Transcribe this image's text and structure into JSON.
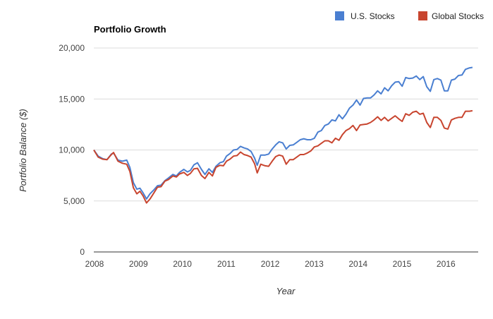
{
  "chart_data": {
    "type": "line",
    "title": "Portfolio Growth",
    "xlabel": "Year",
    "ylabel": "Portfolio Balance ($)",
    "xlim": [
      2008,
      2016.75
    ],
    "ylim": [
      0,
      20000
    ],
    "x_ticks": [
      2008,
      2009,
      2010,
      2011,
      2012,
      2013,
      2014,
      2015,
      2016
    ],
    "y_ticks": [
      0,
      5000,
      10000,
      15000,
      20000
    ],
    "y_tick_labels": [
      "0",
      "5,000",
      "10,000",
      "15,000",
      "20,000"
    ],
    "grid": true,
    "legend_position": "top-right",
    "series": [
      {
        "name": "U.S. Stocks",
        "color": "#4a7fd1",
        "points": [
          [
            2008.0,
            10000
          ],
          [
            2008.1,
            9400
          ],
          [
            2008.2,
            9150
          ],
          [
            2008.3,
            9050
          ],
          [
            2008.4,
            9600
          ],
          [
            2008.45,
            9700
          ],
          [
            2008.55,
            9000
          ],
          [
            2008.65,
            8900
          ],
          [
            2008.75,
            9000
          ],
          [
            2008.82,
            8300
          ],
          [
            2008.9,
            6800
          ],
          [
            2008.98,
            6150
          ],
          [
            2009.05,
            6250
          ],
          [
            2009.12,
            5800
          ],
          [
            2009.2,
            5200
          ],
          [
            2009.28,
            5700
          ],
          [
            2009.37,
            6100
          ],
          [
            2009.45,
            6500
          ],
          [
            2009.53,
            6550
          ],
          [
            2009.62,
            7000
          ],
          [
            2009.7,
            7250
          ],
          [
            2009.8,
            7600
          ],
          [
            2009.88,
            7450
          ],
          [
            2009.95,
            7800
          ],
          [
            2010.05,
            8100
          ],
          [
            2010.13,
            7850
          ],
          [
            2010.2,
            8000
          ],
          [
            2010.28,
            8550
          ],
          [
            2010.36,
            8750
          ],
          [
            2010.45,
            8100
          ],
          [
            2010.53,
            7600
          ],
          [
            2010.62,
            8150
          ],
          [
            2010.7,
            7800
          ],
          [
            2010.78,
            8400
          ],
          [
            2010.87,
            8750
          ],
          [
            2010.95,
            8850
          ],
          [
            2011.02,
            9400
          ],
          [
            2011.1,
            9650
          ],
          [
            2011.18,
            10000
          ],
          [
            2011.26,
            10050
          ],
          [
            2011.34,
            10350
          ],
          [
            2011.42,
            10200
          ],
          [
            2011.5,
            10100
          ],
          [
            2011.58,
            9850
          ],
          [
            2011.66,
            9200
          ],
          [
            2011.72,
            8500
          ],
          [
            2011.8,
            9500
          ],
          [
            2011.9,
            9500
          ],
          [
            2011.98,
            9600
          ],
          [
            2012.06,
            10100
          ],
          [
            2012.14,
            10500
          ],
          [
            2012.22,
            10800
          ],
          [
            2012.3,
            10700
          ],
          [
            2012.38,
            10100
          ],
          [
            2012.46,
            10450
          ],
          [
            2012.54,
            10500
          ],
          [
            2012.62,
            10750
          ],
          [
            2012.7,
            11000
          ],
          [
            2012.78,
            11100
          ],
          [
            2012.86,
            11000
          ],
          [
            2012.94,
            11000
          ],
          [
            2013.02,
            11150
          ],
          [
            2013.1,
            11750
          ],
          [
            2013.18,
            11900
          ],
          [
            2013.26,
            12400
          ],
          [
            2013.34,
            12550
          ],
          [
            2013.42,
            12950
          ],
          [
            2013.5,
            12850
          ],
          [
            2013.58,
            13450
          ],
          [
            2013.66,
            13050
          ],
          [
            2013.74,
            13500
          ],
          [
            2013.82,
            14100
          ],
          [
            2013.9,
            14400
          ],
          [
            2013.98,
            14900
          ],
          [
            2014.06,
            14400
          ],
          [
            2014.14,
            15050
          ],
          [
            2014.22,
            15100
          ],
          [
            2014.3,
            15100
          ],
          [
            2014.38,
            15400
          ],
          [
            2014.46,
            15800
          ],
          [
            2014.54,
            15500
          ],
          [
            2014.62,
            16100
          ],
          [
            2014.7,
            15800
          ],
          [
            2014.78,
            16300
          ],
          [
            2014.86,
            16650
          ],
          [
            2014.94,
            16700
          ],
          [
            2015.02,
            16250
          ],
          [
            2015.1,
            17100
          ],
          [
            2015.18,
            17000
          ],
          [
            2015.26,
            17050
          ],
          [
            2015.34,
            17250
          ],
          [
            2015.42,
            16900
          ],
          [
            2015.5,
            17200
          ],
          [
            2015.58,
            16200
          ],
          [
            2015.66,
            15750
          ],
          [
            2015.74,
            16900
          ],
          [
            2015.82,
            17000
          ],
          [
            2015.9,
            16850
          ],
          [
            2015.98,
            15800
          ],
          [
            2016.06,
            15800
          ],
          [
            2016.14,
            16850
          ],
          [
            2016.22,
            16950
          ],
          [
            2016.3,
            17300
          ],
          [
            2016.38,
            17350
          ],
          [
            2016.46,
            17900
          ],
          [
            2016.55,
            18050
          ],
          [
            2016.62,
            18100
          ]
        ]
      },
      {
        "name": "Global Stocks",
        "color": "#c8452f",
        "points": [
          [
            2008.0,
            10000
          ],
          [
            2008.1,
            9300
          ],
          [
            2008.2,
            9100
          ],
          [
            2008.3,
            9050
          ],
          [
            2008.4,
            9550
          ],
          [
            2008.45,
            9750
          ],
          [
            2008.55,
            8900
          ],
          [
            2008.65,
            8700
          ],
          [
            2008.75,
            8600
          ],
          [
            2008.82,
            7900
          ],
          [
            2008.9,
            6300
          ],
          [
            2008.98,
            5700
          ],
          [
            2009.05,
            5950
          ],
          [
            2009.12,
            5500
          ],
          [
            2009.2,
            4800
          ],
          [
            2009.28,
            5200
          ],
          [
            2009.37,
            5800
          ],
          [
            2009.45,
            6350
          ],
          [
            2009.53,
            6400
          ],
          [
            2009.62,
            6950
          ],
          [
            2009.7,
            7100
          ],
          [
            2009.8,
            7450
          ],
          [
            2009.88,
            7350
          ],
          [
            2009.95,
            7650
          ],
          [
            2010.05,
            7800
          ],
          [
            2010.13,
            7500
          ],
          [
            2010.2,
            7700
          ],
          [
            2010.28,
            8150
          ],
          [
            2010.36,
            8200
          ],
          [
            2010.45,
            7500
          ],
          [
            2010.53,
            7200
          ],
          [
            2010.62,
            7800
          ],
          [
            2010.7,
            7450
          ],
          [
            2010.78,
            8300
          ],
          [
            2010.87,
            8500
          ],
          [
            2010.95,
            8450
          ],
          [
            2011.02,
            8900
          ],
          [
            2011.1,
            9100
          ],
          [
            2011.18,
            9400
          ],
          [
            2011.26,
            9450
          ],
          [
            2011.34,
            9800
          ],
          [
            2011.42,
            9550
          ],
          [
            2011.5,
            9450
          ],
          [
            2011.58,
            9300
          ],
          [
            2011.66,
            8650
          ],
          [
            2011.72,
            7750
          ],
          [
            2011.8,
            8600
          ],
          [
            2011.9,
            8450
          ],
          [
            2011.98,
            8400
          ],
          [
            2012.06,
            8900
          ],
          [
            2012.14,
            9350
          ],
          [
            2012.22,
            9500
          ],
          [
            2012.3,
            9400
          ],
          [
            2012.38,
            8600
          ],
          [
            2012.46,
            9050
          ],
          [
            2012.54,
            9050
          ],
          [
            2012.62,
            9300
          ],
          [
            2012.7,
            9550
          ],
          [
            2012.78,
            9550
          ],
          [
            2012.86,
            9700
          ],
          [
            2012.94,
            9900
          ],
          [
            2013.02,
            10300
          ],
          [
            2013.1,
            10400
          ],
          [
            2013.18,
            10650
          ],
          [
            2013.26,
            10900
          ],
          [
            2013.34,
            10900
          ],
          [
            2013.42,
            10700
          ],
          [
            2013.5,
            11150
          ],
          [
            2013.58,
            10950
          ],
          [
            2013.66,
            11500
          ],
          [
            2013.74,
            11900
          ],
          [
            2013.82,
            12100
          ],
          [
            2013.9,
            12400
          ],
          [
            2013.98,
            11900
          ],
          [
            2014.06,
            12450
          ],
          [
            2014.14,
            12500
          ],
          [
            2014.22,
            12550
          ],
          [
            2014.3,
            12700
          ],
          [
            2014.38,
            12950
          ],
          [
            2014.46,
            13250
          ],
          [
            2014.54,
            12900
          ],
          [
            2014.62,
            13200
          ],
          [
            2014.7,
            12850
          ],
          [
            2014.78,
            13100
          ],
          [
            2014.86,
            13350
          ],
          [
            2014.94,
            13050
          ],
          [
            2015.02,
            12800
          ],
          [
            2015.1,
            13550
          ],
          [
            2015.18,
            13400
          ],
          [
            2015.26,
            13700
          ],
          [
            2015.34,
            13800
          ],
          [
            2015.42,
            13500
          ],
          [
            2015.5,
            13600
          ],
          [
            2015.58,
            12700
          ],
          [
            2015.66,
            12200
          ],
          [
            2015.74,
            13200
          ],
          [
            2015.82,
            13200
          ],
          [
            2015.9,
            12900
          ],
          [
            2015.98,
            12150
          ],
          [
            2016.06,
            12050
          ],
          [
            2016.14,
            12950
          ],
          [
            2016.22,
            13100
          ],
          [
            2016.3,
            13200
          ],
          [
            2016.38,
            13200
          ],
          [
            2016.46,
            13800
          ],
          [
            2016.55,
            13800
          ],
          [
            2016.62,
            13850
          ]
        ]
      }
    ]
  }
}
